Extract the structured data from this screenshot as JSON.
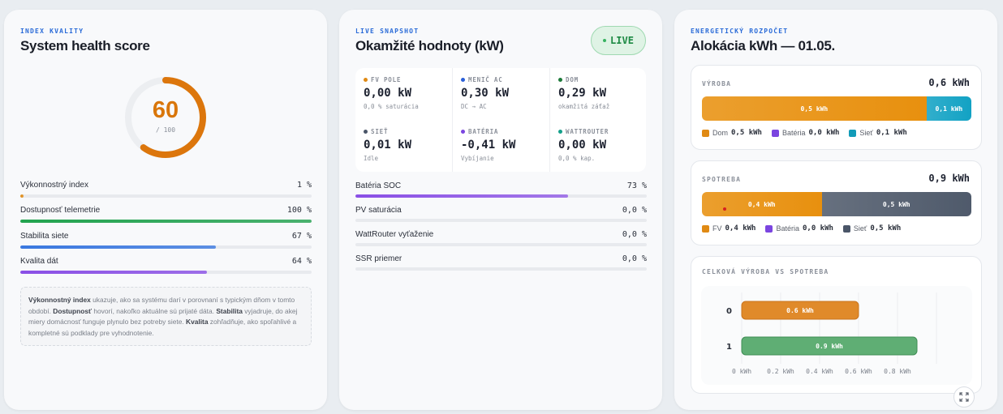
{
  "health": {
    "kicker": "INDEX KVALITY",
    "title": "System health score",
    "score": 60,
    "score_display": "60",
    "score_sub": "/ 100",
    "metrics": [
      {
        "label": "Výkonnostný index",
        "value": "1 %",
        "percent": 1,
        "color": "#e08a14"
      },
      {
        "label": "Dostupnosť telemetrie",
        "value": "100 %",
        "percent": 100,
        "color": "#22a34f"
      },
      {
        "label": "Stabilita siete",
        "value": "67 %",
        "percent": 67,
        "color": "#3a78e0"
      },
      {
        "label": "Kvalita dát",
        "value": "64 %",
        "percent": 64,
        "color": "#8a4fe6"
      }
    ],
    "note": {
      "t1": "Výkonnostný index",
      "t2": " ukazuje, ako sa systému darí v porovnaní s typickým dňom v tomto období. ",
      "t3": "Dostupnosť",
      "t4": " hovorí, nakoľko aktuálne sú prijaté dáta. ",
      "t5": "Stabilita",
      "t6": " vyjadruje, do akej miery domácnosť funguje plynulo bez potreby siete. ",
      "t7": "Kvalita",
      "t8": " zohľadňuje, ako spoľahlivé a kompletné sú podklady pre vyhodnotenie."
    }
  },
  "snapshot": {
    "kicker": "LIVE SNAPSHOT",
    "title": "Okamžité hodnoty (kW)",
    "live_label": "LIVE",
    "tiles": [
      {
        "label": "FV POLE",
        "value": "0,00 kW",
        "sub": "0,0 % saturácia",
        "color": "#e08a14"
      },
      {
        "label": "MENIČ AC",
        "value": "0,30 kW",
        "sub": "DC → AC",
        "color": "#2a5fd8"
      },
      {
        "label": "DOM",
        "value": "0,29 kW",
        "sub": "okamžitá záťaž",
        "color": "#1d7a3a"
      },
      {
        "label": "SIEŤ",
        "value": "0,01 kW",
        "sub": "Idle",
        "color": "#4a5568"
      },
      {
        "label": "BATÉRIA",
        "value": "-0,41 kW",
        "sub": "Vybíjanie",
        "color": "#7b45e0"
      },
      {
        "label": "WATTROUTER",
        "value": "0,00 kW",
        "sub": "0,0 % kap.",
        "color": "#14a08a"
      }
    ],
    "rows": [
      {
        "label": "Batéria SOC",
        "value": "73 %",
        "percent": 73,
        "color": "#8a4fe6"
      },
      {
        "label": "PV saturácia",
        "value": "0,0 %",
        "percent": 0,
        "color": "#e08a14"
      },
      {
        "label": "WattRouter vyťaženie",
        "value": "0,0 %",
        "percent": 0,
        "color": "#14a08a"
      },
      {
        "label": "SSR priemer",
        "value": "0,0 %",
        "percent": 0,
        "color": "#2a5fd8"
      }
    ]
  },
  "budget": {
    "kicker": "ENERGETICKÝ ROZPOČET",
    "title": "Alokácia kWh — 01.05.",
    "production": {
      "label": "VÝROBA",
      "total": "0,6 kWh",
      "segments": [
        {
          "label": "0,5 kWh",
          "value": 0.5,
          "color": "#e8900e"
        },
        {
          "label": "0,1 kWh",
          "value": 0.1,
          "color": "#12a2c4"
        }
      ],
      "legend": [
        {
          "name": "Dom",
          "value": "0,5 kWh",
          "color": "#e08a14"
        },
        {
          "name": "Batéria",
          "value": "0,0 kWh",
          "color": "#7b45e0"
        },
        {
          "name": "Sieť",
          "value": "0,1 kWh",
          "color": "#129bb8"
        }
      ]
    },
    "consumption": {
      "label": "SPOTREBA",
      "total": "0,9 kWh",
      "segments": [
        {
          "label": "0,4 kWh",
          "value": 0.4,
          "color": "#e8900e"
        },
        {
          "label": "0,5 kWh",
          "value": 0.5,
          "color": "#4f5a6b"
        }
      ],
      "legend": [
        {
          "name": "FV",
          "value": "0,4 kWh",
          "color": "#e08a14"
        },
        {
          "name": "Batéria",
          "value": "0,0 kWh",
          "color": "#7b45e0"
        },
        {
          "name": "Sieť",
          "value": "0,5 kWh",
          "color": "#4a5568"
        }
      ]
    },
    "compare": {
      "label": "CELKOVÁ VÝROBA VS SPOTREBA"
    }
  },
  "chart_data": {
    "type": "bar",
    "orientation": "horizontal",
    "categories": [
      "0",
      "1"
    ],
    "values": [
      0.6,
      0.9
    ],
    "data_labels": [
      "0.6 kWh",
      "0.9 kWh"
    ],
    "colors": [
      "#e08a2a",
      "#5fae74"
    ],
    "xlim": [
      0,
      1
    ],
    "xticks": [
      "0 kWh",
      "0.2 kWh",
      "0.4 kWh",
      "0.6 kWh",
      "0.8 kWh"
    ],
    "title": "CELKOVÁ VÝROBA VS SPOTREBA",
    "grid": true
  }
}
